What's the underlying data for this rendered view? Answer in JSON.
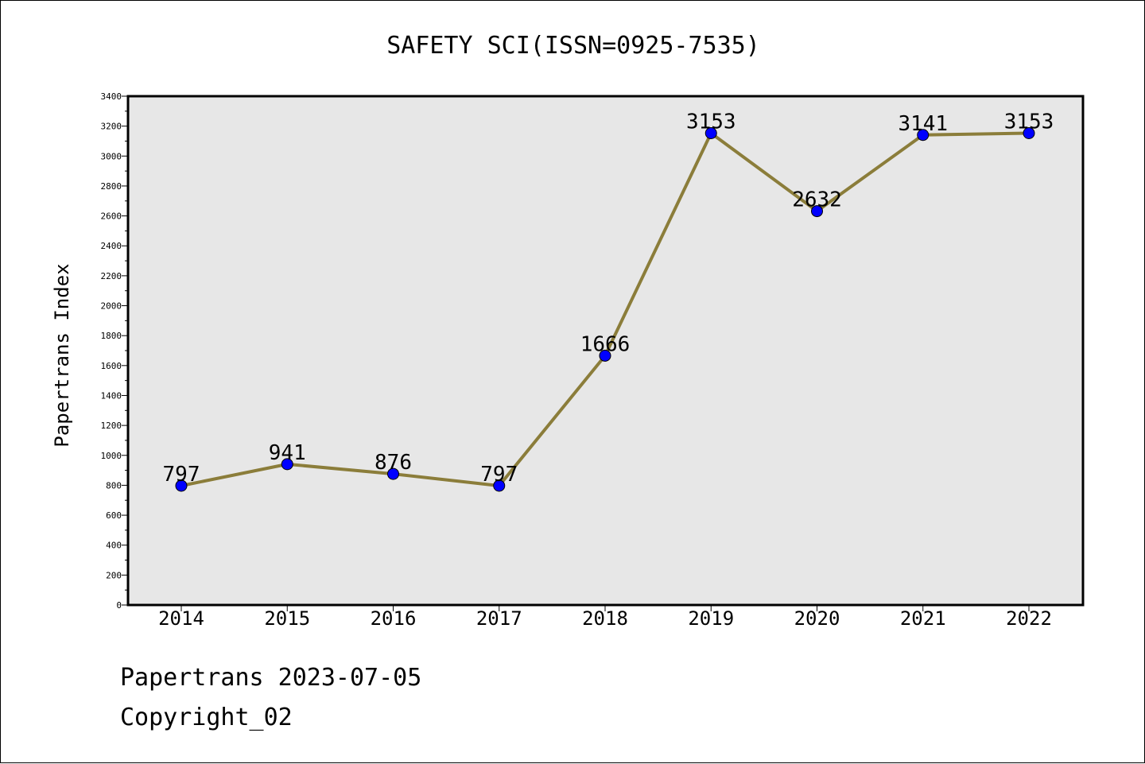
{
  "chart_data": {
    "type": "line",
    "title": "SAFETY SCI(ISSN=0925-7535)",
    "xlabel": "",
    "ylabel": "Papertrans Index",
    "categories": [
      "2014",
      "2015",
      "2016",
      "2017",
      "2018",
      "2019",
      "2020",
      "2021",
      "2022"
    ],
    "series": [
      {
        "values": [
          797,
          941,
          876,
          797,
          1666,
          3153,
          2632,
          3141,
          3153
        ],
        "color": "#8b7d3a",
        "marker_color": "#0000ff"
      }
    ],
    "data_labels": [
      "797",
      "941",
      "876",
      "797",
      "1666",
      "3153",
      "2632",
      "3141",
      "3153"
    ],
    "ylim": [
      0,
      3400
    ],
    "y_ticks": [
      "0",
      "200",
      "400",
      "600",
      "800",
      "1000",
      "1200",
      "1400",
      "1600",
      "1800",
      "2000",
      "2200",
      "2400",
      "2600",
      "2800",
      "3000",
      "3200",
      "3400"
    ],
    "grid": false,
    "legend": "none",
    "plot_background": "#e7e7e7"
  },
  "footer": {
    "date_line": "Papertrans 2023-07-05",
    "copyright_line": "Copyright_02"
  }
}
